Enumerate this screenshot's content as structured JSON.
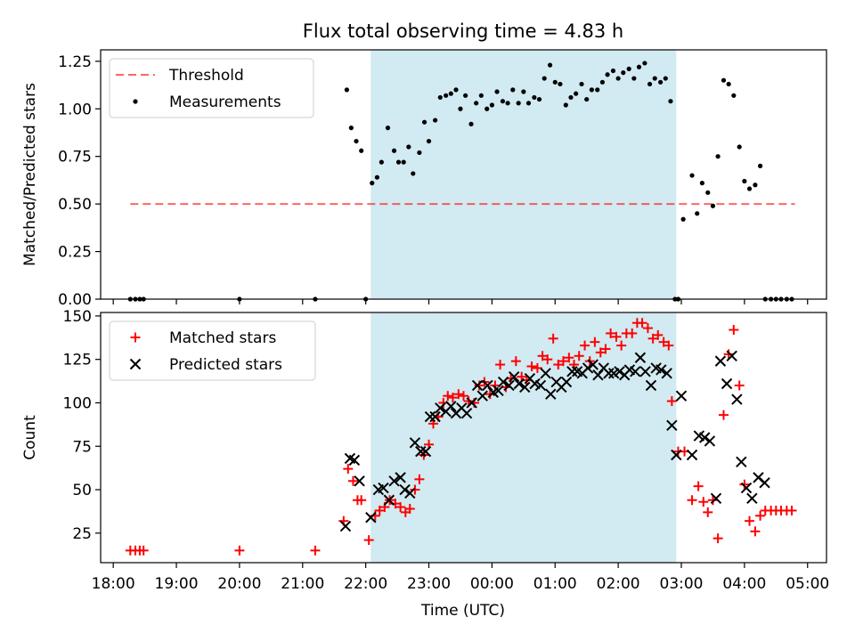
{
  "figure": {
    "title": "Flux total observing time = 4.83 h",
    "xlabel": "Time (UTC)"
  },
  "colors": {
    "shade": "#add8e6",
    "threshold": "#ff0000",
    "measurements": "#000000",
    "matched": "#ff0000",
    "predicted": "#000000"
  },
  "chart_data": [
    {
      "type": "scatter",
      "ylabel": "Matched/Predicted stars",
      "x_unit": "hours since 18:00 UTC",
      "xlim": [
        -0.2,
        11.3
      ],
      "ylim": [
        0,
        1.31
      ],
      "yticks": [
        "0.00",
        "0.25",
        "0.50",
        "0.75",
        "1.00",
        "1.25"
      ],
      "ytick_values": [
        0,
        0.25,
        0.5,
        0.75,
        1.0,
        1.25
      ],
      "grid": false,
      "legend_position": "upper left",
      "shaded_interval": [
        4.08,
        8.92
      ],
      "threshold": {
        "name": "Threshold",
        "y": 0.5,
        "x_range": [
          0.27,
          10.8
        ]
      },
      "series": [
        {
          "name": "Measurements",
          "marker": "dot",
          "x": [
            0.27,
            0.35,
            0.42,
            0.48,
            2.0,
            3.2,
            4.0,
            3.7,
            3.77,
            3.85,
            3.93,
            4.1,
            4.18,
            4.25,
            4.35,
            4.45,
            4.52,
            4.6,
            4.68,
            4.75,
            4.85,
            4.93,
            5.0,
            5.1,
            5.18,
            5.27,
            5.35,
            5.43,
            5.5,
            5.58,
            5.67,
            5.75,
            5.83,
            5.92,
            6.0,
            6.08,
            6.17,
            6.25,
            6.33,
            6.42,
            6.5,
            6.58,
            6.67,
            6.75,
            6.83,
            6.92,
            7.0,
            7.08,
            7.17,
            7.25,
            7.33,
            7.42,
            7.5,
            7.58,
            7.67,
            7.75,
            7.83,
            7.92,
            8.0,
            8.08,
            8.17,
            8.25,
            8.33,
            8.42,
            8.5,
            8.58,
            8.67,
            8.75,
            8.83,
            8.9,
            8.95,
            9.03,
            9.17,
            9.25,
            9.33,
            9.42,
            9.5,
            9.58,
            9.67,
            9.75,
            9.83,
            9.92,
            10.0,
            10.08,
            10.17,
            10.25,
            10.33,
            10.42,
            10.5,
            10.58,
            10.67,
            10.75
          ],
          "y": [
            0,
            0,
            0,
            0,
            0,
            0,
            0,
            1.1,
            0.9,
            0.83,
            0.78,
            0.61,
            0.64,
            0.72,
            0.9,
            0.78,
            0.72,
            0.72,
            0.8,
            0.66,
            0.77,
            0.93,
            0.83,
            0.94,
            1.06,
            1.07,
            1.08,
            1.1,
            1.0,
            1.07,
            0.92,
            1.03,
            1.07,
            1.0,
            1.02,
            1.09,
            1.04,
            1.03,
            1.1,
            1.03,
            1.09,
            1.03,
            1.06,
            1.05,
            1.16,
            1.23,
            1.14,
            1.13,
            1.02,
            1.06,
            1.08,
            1.13,
            1.05,
            1.1,
            1.1,
            1.14,
            1.18,
            1.2,
            1.16,
            1.19,
            1.21,
            1.16,
            1.22,
            1.24,
            1.13,
            1.16,
            1.14,
            1.16,
            1.04,
            0,
            0,
            0.42,
            0.65,
            0.45,
            0.61,
            0.56,
            0.49,
            0.75,
            1.15,
            1.13,
            1.07,
            0.8,
            0.62,
            0.58,
            0.6,
            0.7,
            0,
            0,
            0,
            0,
            0,
            0
          ]
        }
      ]
    },
    {
      "type": "scatter",
      "ylabel": "Count",
      "x_unit": "hours since 18:00 UTC",
      "xlim": [
        -0.2,
        11.3
      ],
      "ylim": [
        8,
        152
      ],
      "yticks": [
        "25",
        "50",
        "75",
        "100",
        "125",
        "150"
      ],
      "ytick_values": [
        25,
        50,
        75,
        100,
        125,
        150
      ],
      "xtick_labels": [
        "18:00",
        "19:00",
        "20:00",
        "21:00",
        "22:00",
        "23:00",
        "00:00",
        "01:00",
        "02:00",
        "03:00",
        "04:00",
        "05:00"
      ],
      "xtick_values": [
        0,
        1,
        2,
        3,
        4,
        5,
        6,
        7,
        8,
        9,
        10,
        11
      ],
      "grid": false,
      "legend_position": "upper left",
      "shaded_interval": [
        4.08,
        8.92
      ],
      "series": [
        {
          "name": "Matched stars",
          "marker": "plus",
          "x": [
            0.27,
            0.35,
            0.42,
            0.48,
            2.0,
            3.2,
            3.65,
            3.72,
            3.8,
            3.87,
            3.93,
            4.05,
            4.15,
            4.22,
            4.3,
            4.38,
            4.47,
            4.55,
            4.63,
            4.7,
            4.78,
            4.85,
            4.92,
            5.0,
            5.07,
            5.15,
            5.23,
            5.3,
            5.38,
            5.47,
            5.55,
            5.63,
            5.72,
            5.8,
            5.88,
            5.97,
            6.05,
            6.13,
            6.22,
            6.3,
            6.38,
            6.47,
            6.55,
            6.63,
            6.72,
            6.8,
            6.88,
            6.97,
            7.05,
            7.13,
            7.22,
            7.3,
            7.38,
            7.47,
            7.55,
            7.63,
            7.72,
            7.8,
            7.88,
            7.97,
            8.05,
            8.13,
            8.22,
            8.3,
            8.38,
            8.47,
            8.55,
            8.63,
            8.72,
            8.8,
            8.85,
            8.95,
            9.05,
            9.17,
            9.27,
            9.35,
            9.42,
            9.5,
            9.58,
            9.67,
            9.75,
            9.83,
            9.92,
            10.0,
            10.08,
            10.17,
            10.25,
            10.33,
            10.42,
            10.5,
            10.58,
            10.67,
            10.75
          ],
          "y": [
            15,
            15,
            15,
            15,
            15,
            15,
            32,
            62,
            55,
            44,
            44,
            21,
            35,
            38,
            40,
            44,
            42,
            40,
            37,
            39,
            50,
            56,
            70,
            76,
            88,
            92,
            100,
            104,
            103,
            105,
            104,
            101,
            100,
            110,
            112,
            105,
            110,
            122,
            109,
            114,
            124,
            115,
            113,
            121,
            120,
            127,
            125,
            137,
            122,
            124,
            126,
            122,
            127,
            133,
            124,
            135,
            129,
            131,
            140,
            138,
            133,
            140,
            140,
            146,
            146,
            143,
            137,
            139,
            135,
            133,
            101,
            72,
            72,
            44,
            52,
            43,
            37,
            44,
            22,
            93,
            128,
            142,
            110,
            53,
            32,
            26,
            35,
            38,
            38,
            38,
            38,
            38,
            38
          ]
        },
        {
          "name": "Predicted stars",
          "marker": "x",
          "x": [
            3.68,
            3.75,
            3.82,
            3.9,
            4.08,
            4.2,
            4.28,
            4.37,
            4.45,
            4.55,
            4.62,
            4.7,
            4.78,
            4.87,
            4.95,
            5.02,
            5.1,
            5.18,
            5.27,
            5.35,
            5.43,
            5.52,
            5.6,
            5.68,
            5.77,
            5.85,
            5.93,
            6.02,
            6.1,
            6.18,
            6.27,
            6.35,
            6.43,
            6.52,
            6.6,
            6.68,
            6.77,
            6.85,
            6.93,
            7.02,
            7.1,
            7.18,
            7.27,
            7.35,
            7.43,
            7.52,
            7.6,
            7.68,
            7.77,
            7.85,
            7.93,
            8.02,
            8.1,
            8.18,
            8.27,
            8.35,
            8.43,
            8.52,
            8.6,
            8.68,
            8.77,
            8.85,
            8.92,
            9.0,
            9.17,
            9.28,
            9.37,
            9.45,
            9.55,
            9.62,
            9.72,
            9.8,
            9.88,
            9.95,
            10.03,
            10.12,
            10.22,
            10.32
          ],
          "y": [
            29,
            68,
            67,
            55,
            34,
            50,
            51,
            44,
            55,
            57,
            50,
            48,
            77,
            72,
            72,
            92,
            92,
            97,
            95,
            98,
            94,
            97,
            94,
            100,
            110,
            104,
            110,
            106,
            107,
            112,
            110,
            115,
            111,
            109,
            114,
            111,
            110,
            117,
            105,
            112,
            109,
            112,
            118,
            118,
            117,
            120,
            122,
            116,
            120,
            117,
            117,
            118,
            116,
            119,
            118,
            126,
            118,
            110,
            120,
            119,
            117,
            87,
            70,
            104,
            70,
            81,
            80,
            78,
            45,
            124,
            111,
            127,
            102,
            66,
            51,
            45,
            57,
            54
          ]
        }
      ]
    }
  ]
}
